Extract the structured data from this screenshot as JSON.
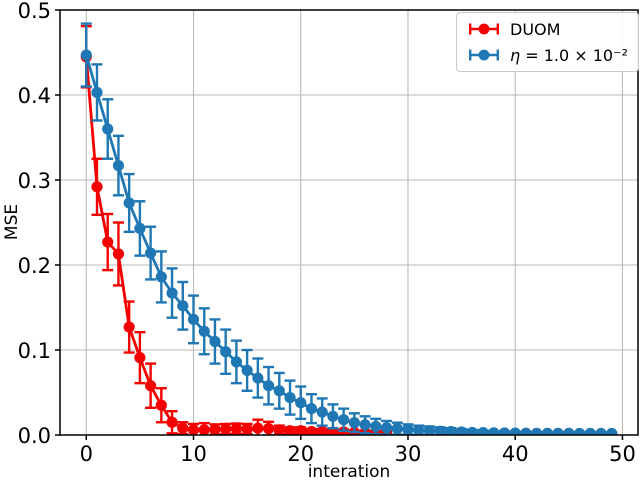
{
  "style": {
    "background": "#ffffff",
    "grid_color": "#b9b9b9",
    "spine_color": "#000000",
    "legend_border": "#c9c9c9",
    "red": "#f40000",
    "blue": "#1f77b4"
  },
  "legend": {
    "items": [
      {
        "label": "DUOM"
      },
      {
        "label": "η = 1.0 × 10⁻²",
        "var": "η",
        "rest": " = 1.0 × 10⁻²"
      }
    ]
  },
  "chart_data": {
    "type": "line",
    "subtype": "errorbar",
    "title": "",
    "xlabel": "interation",
    "ylabel": "MSE",
    "xlim": [
      -2.45,
      51.45
    ],
    "ylim": [
      0,
      0.5
    ],
    "grid": true,
    "legend_position": "upper right",
    "xticks": [
      0,
      10,
      20,
      30,
      40,
      50
    ],
    "yticks": [
      0,
      0.1,
      0.2,
      0.3,
      0.4,
      0.5
    ],
    "xtick_labels": [
      "0",
      "10",
      "20",
      "30",
      "40",
      "50"
    ],
    "ytick_labels": [
      "0.0",
      "0.1",
      "0.2",
      "0.3",
      "0.4",
      "0.5"
    ],
    "series": [
      {
        "id": "duom",
        "name": "DUOM",
        "color": "#f40000",
        "x": [
          0,
          1,
          2,
          3,
          4,
          5,
          6,
          7,
          8,
          9,
          10,
          11,
          12,
          13,
          14,
          15,
          16,
          17,
          18,
          19,
          20,
          21,
          22,
          23,
          24,
          25,
          26,
          27,
          28
        ],
        "y": [
          0.445,
          0.292,
          0.227,
          0.213,
          0.127,
          0.091,
          0.058,
          0.035,
          0.015,
          0.008,
          0.006,
          0.006,
          0.0065,
          0.007,
          0.0075,
          0.007,
          0.008,
          0.0075,
          0.006,
          0.005,
          0.005,
          0.004,
          0.004,
          0.0035,
          0.0035,
          0.003,
          0.003,
          0.003,
          0.003
        ],
        "yerr": [
          0.036,
          0.033,
          0.033,
          0.037,
          0.03,
          0.03,
          0.026,
          0.02,
          0.013,
          0.007,
          0.007,
          0.008,
          0.006,
          0.006,
          0.006,
          0.006,
          0.01,
          0.008,
          0.005,
          0.004,
          0.004,
          0.003,
          0.003,
          0.003,
          0.003,
          0.002,
          0.002,
          0.002,
          0.002
        ]
      },
      {
        "id": "eta",
        "name": "η = 1.0 × 10⁻²",
        "color": "#1f77b4",
        "x": [
          0,
          1,
          2,
          3,
          4,
          5,
          6,
          7,
          8,
          9,
          10,
          11,
          12,
          13,
          14,
          15,
          16,
          17,
          18,
          19,
          20,
          21,
          22,
          23,
          24,
          25,
          26,
          27,
          28,
          29,
          30,
          31,
          32,
          33,
          34,
          35,
          36,
          37,
          38,
          39,
          40,
          41,
          42,
          43,
          44,
          45,
          46,
          47,
          48,
          49
        ],
        "y": [
          0.447,
          0.403,
          0.36,
          0.317,
          0.273,
          0.243,
          0.214,
          0.186,
          0.167,
          0.152,
          0.136,
          0.122,
          0.11,
          0.098,
          0.086,
          0.076,
          0.067,
          0.058,
          0.052,
          0.044,
          0.038,
          0.031,
          0.027,
          0.022,
          0.018,
          0.0145,
          0.012,
          0.01,
          0.0085,
          0.0075,
          0.0065,
          0.0055,
          0.005,
          0.0045,
          0.004,
          0.0035,
          0.003,
          0.0028,
          0.0026,
          0.0024,
          0.0022,
          0.0021,
          0.002,
          0.002,
          0.0019,
          0.0019,
          0.0018,
          0.0018,
          0.0018,
          0.0018
        ],
        "yerr": [
          0.037,
          0.033,
          0.035,
          0.035,
          0.034,
          0.032,
          0.031,
          0.03,
          0.029,
          0.028,
          0.028,
          0.027,
          0.026,
          0.026,
          0.025,
          0.024,
          0.023,
          0.022,
          0.021,
          0.02,
          0.019,
          0.017,
          0.016,
          0.014,
          0.013,
          0.011,
          0.01,
          0.009,
          0.008,
          0.007,
          0.006,
          0.0055,
          0.005,
          0.0045,
          0.004,
          0.0035,
          0.003,
          0.0025,
          0.002,
          0.0018,
          0.0015,
          0.0013,
          0.0012,
          0.001,
          0.001,
          0.001,
          0.001,
          0.001,
          0.001,
          0.001
        ]
      }
    ]
  }
}
